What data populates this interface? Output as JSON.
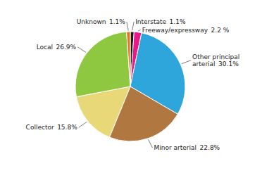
{
  "chart_data": {
    "type": "pie",
    "categories": [
      "Interstate",
      "Freeway/expressway",
      "Other principal\narterial",
      "Minor arterial",
      "Collector",
      "Local",
      "Unknown"
    ],
    "values": [
      1.1,
      2.2,
      30.1,
      22.8,
      15.8,
      26.9,
      1.1
    ],
    "value_labels": [
      "1.1%",
      "2.2 %",
      "30.1%",
      "22.8%",
      "15.8%",
      "26.9%",
      "1.1%"
    ],
    "colors": [
      "#1A1A1A",
      "#E8198B",
      "#2EA6DC",
      "#B07840",
      "#E8D878",
      "#8DC840",
      "#E07820"
    ]
  }
}
